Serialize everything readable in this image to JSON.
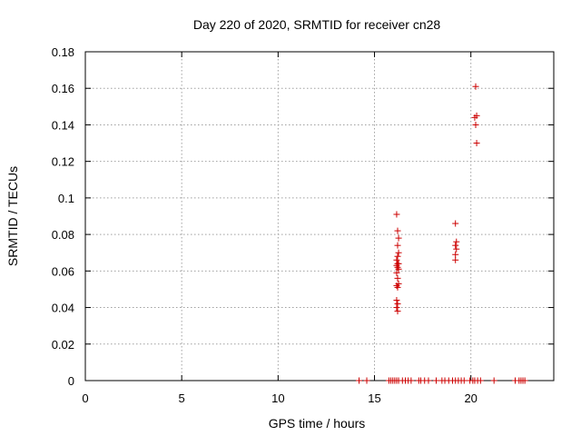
{
  "chart_data": {
    "type": "scatter",
    "title": "Day 220 of 2020, SRMTID for receiver cn28",
    "xlabel": "GPS time / hours",
    "ylabel": "SRMTID / TECUs",
    "xlim": [
      0,
      24.3
    ],
    "ylim": [
      0,
      0.18
    ],
    "xticks": [
      0,
      5,
      10,
      15,
      20
    ],
    "xtick_labels": [
      "0",
      "5",
      "10",
      "15",
      "20"
    ],
    "yticks": [
      0,
      0.02,
      0.04,
      0.06,
      0.08,
      0.1,
      0.12,
      0.14,
      0.16,
      0.18
    ],
    "ytick_labels": [
      "0",
      "0.02",
      "0.04",
      "0.06",
      "0.08",
      "0.1",
      "0.12",
      "0.14",
      "0.16",
      "0.18"
    ],
    "grid": true,
    "marker": "+",
    "color": "#cc0000",
    "series": [
      {
        "name": "SRMTID",
        "x": [
          14.2,
          14.6,
          15.75,
          15.85,
          15.95,
          16.05,
          16.15,
          16.25,
          16.45,
          16.6,
          16.75,
          16.9,
          17.3,
          17.4,
          17.6,
          17.8,
          18.2,
          18.5,
          18.65,
          18.85,
          19.05,
          19.2,
          19.35,
          19.5,
          19.65,
          19.95,
          20.1,
          20.2,
          20.35,
          20.5,
          21.2,
          22.3,
          22.5,
          22.6,
          22.7,
          22.8,
          16.15,
          16.2,
          16.25,
          16.2,
          16.25,
          16.2,
          16.15,
          16.2,
          16.25,
          16.15,
          16.2,
          16.25,
          16.15,
          16.2,
          16.25,
          16.15,
          16.2,
          16.15,
          16.2,
          16.15,
          16.2,
          19.2,
          19.25,
          19.2,
          19.25,
          19.2,
          19.2,
          20.25,
          20.3,
          20.2,
          20.25,
          20.3
        ],
        "y": [
          0,
          0,
          0,
          0,
          0,
          0,
          0,
          0,
          0,
          0,
          0,
          0,
          0,
          0,
          0,
          0,
          0,
          0,
          0,
          0,
          0,
          0,
          0,
          0,
          0,
          0,
          0,
          0,
          0,
          0,
          0,
          0,
          0,
          0,
          0,
          0,
          0.091,
          0.082,
          0.078,
          0.074,
          0.07,
          0.068,
          0.066,
          0.064,
          0.064,
          0.063,
          0.062,
          0.061,
          0.059,
          0.056,
          0.053,
          0.052,
          0.051,
          0.044,
          0.042,
          0.04,
          0.038,
          0.086,
          0.076,
          0.074,
          0.072,
          0.069,
          0.066,
          0.161,
          0.145,
          0.144,
          0.14,
          0.13
        ]
      }
    ]
  }
}
